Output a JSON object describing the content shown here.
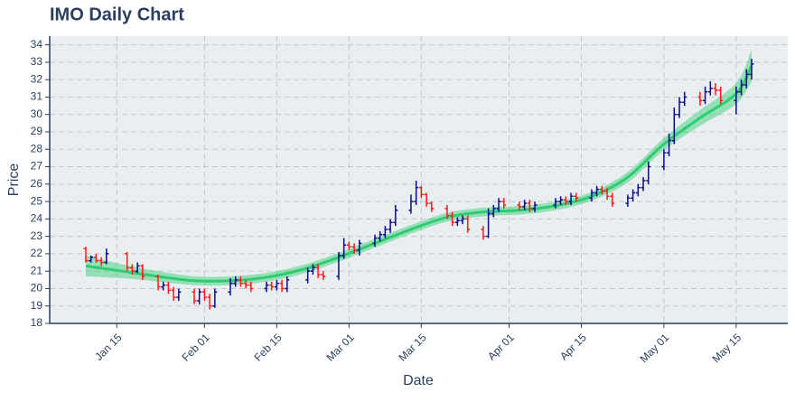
{
  "chart_data": {
    "type": "ohlc",
    "title": "IMO Daily Chart",
    "x_label": "Date",
    "y_label": "Price",
    "xlim": [
      "Jan 02",
      "May 25"
    ],
    "ylim": [
      18,
      34.5
    ],
    "xticks": [
      "Jan 15",
      "Feb 01",
      "Feb 15",
      "Mar 01",
      "Mar 15",
      "Apr 01",
      "Apr 15",
      "May 01",
      "May 15"
    ],
    "yticks": [
      18,
      19,
      20,
      21,
      22,
      23,
      24,
      25,
      26,
      27,
      28,
      29,
      30,
      31,
      32,
      33,
      34
    ],
    "grid": true,
    "series": [
      {
        "increasing_color": "#0a0a8a",
        "decreasing_color": "#ff1a1a",
        "x": [
          "Jan 09",
          "Jan 10",
          "Jan 11",
          "Jan 12",
          "Jan 13",
          "Jan 17",
          "Jan 18",
          "Jan 19",
          "Jan 20",
          "Jan 23",
          "Jan 24",
          "Jan 25",
          "Jan 26",
          "Jan 27",
          "Jan 30",
          "Jan 31",
          "Feb 01",
          "Feb 02",
          "Feb 03",
          "Feb 06",
          "Feb 07",
          "Feb 08",
          "Feb 09",
          "Feb 10",
          "Feb 13",
          "Feb 14",
          "Feb 15",
          "Feb 16",
          "Feb 17",
          "Feb 21",
          "Feb 22",
          "Feb 23",
          "Feb 24",
          "Feb 27",
          "Feb 28",
          "Mar 01",
          "Mar 02",
          "Mar 03",
          "Mar 06",
          "Mar 07",
          "Mar 08",
          "Mar 09",
          "Mar 10",
          "Mar 13",
          "Mar 14",
          "Mar 15",
          "Mar 16",
          "Mar 17",
          "Mar 20",
          "Mar 21",
          "Mar 22",
          "Mar 23",
          "Mar 24",
          "Mar 27",
          "Mar 28",
          "Mar 29",
          "Mar 30",
          "Mar 31",
          "Apr 03",
          "Apr 04",
          "Apr 05",
          "Apr 06",
          "Apr 10",
          "Apr 11",
          "Apr 12",
          "Apr 13",
          "Apr 14",
          "Apr 17",
          "Apr 18",
          "Apr 19",
          "Apr 20",
          "Apr 21",
          "Apr 24",
          "Apr 25",
          "Apr 26",
          "Apr 27",
          "Apr 28",
          "May 01",
          "May 02",
          "May 03",
          "May 04",
          "May 05",
          "May 08",
          "May 09",
          "May 10",
          "May 11",
          "May 12",
          "May 15",
          "May 16",
          "May 17",
          "May 18"
        ],
        "open": [
          22.3,
          21.6,
          21.8,
          21.6,
          21.5,
          22.0,
          21.2,
          21.0,
          21.3,
          20.7,
          20.1,
          20.2,
          19.9,
          19.5,
          19.8,
          19.3,
          19.8,
          19.5,
          19.0,
          19.8,
          20.3,
          20.5,
          20.3,
          20.2,
          20.0,
          20.2,
          20.1,
          20.3,
          20.0,
          20.5,
          21.0,
          21.2,
          20.8,
          20.7,
          21.9,
          22.5,
          22.4,
          22.2,
          22.6,
          22.9,
          23.1,
          23.4,
          23.8,
          24.5,
          25.0,
          25.8,
          25.4,
          24.9,
          24.6,
          24.2,
          23.8,
          23.9,
          24.0,
          23.4,
          23.0,
          24.3,
          24.6,
          25.0,
          24.8,
          24.7,
          24.9,
          24.6,
          24.8,
          25.0,
          25.1,
          25.0,
          25.3,
          25.2,
          25.5,
          25.7,
          25.6,
          25.3,
          24.9,
          25.2,
          25.5,
          25.8,
          26.2,
          27.0,
          27.8,
          28.5,
          30.0,
          30.7,
          31.0,
          30.8,
          31.3,
          31.5,
          31.4,
          30.8,
          31.3,
          31.7,
          32.3
        ],
        "high": [
          22.4,
          21.9,
          22.0,
          21.8,
          22.3,
          22.1,
          21.4,
          21.5,
          21.4,
          20.8,
          20.4,
          20.4,
          20.1,
          20.0,
          20.0,
          20.0,
          20.0,
          19.7,
          20.0,
          20.6,
          20.7,
          20.7,
          20.5,
          20.4,
          20.4,
          20.4,
          20.5,
          20.5,
          20.7,
          21.2,
          21.4,
          21.4,
          21.0,
          22.1,
          22.9,
          22.7,
          22.6,
          22.8,
          23.1,
          23.3,
          23.6,
          24.0,
          24.8,
          25.4,
          26.2,
          25.9,
          25.5,
          25.0,
          24.8,
          24.4,
          24.1,
          24.2,
          24.2,
          23.6,
          24.6,
          24.8,
          25.2,
          25.2,
          25.0,
          25.1,
          25.1,
          25.0,
          25.2,
          25.3,
          25.3,
          25.5,
          25.5,
          25.7,
          25.9,
          25.9,
          25.8,
          25.5,
          25.4,
          25.7,
          26.0,
          26.4,
          27.3,
          28.0,
          28.9,
          30.4,
          31.0,
          31.3,
          31.3,
          31.6,
          31.9,
          31.8,
          31.6,
          31.6,
          32.0,
          32.6,
          33.2
        ],
        "low": [
          21.5,
          21.5,
          21.5,
          21.3,
          21.4,
          21.0,
          20.8,
          20.9,
          20.5,
          19.9,
          19.9,
          19.7,
          19.3,
          19.3,
          19.1,
          19.1,
          19.3,
          18.8,
          18.9,
          19.6,
          20.1,
          20.1,
          20.0,
          19.8,
          19.8,
          19.9,
          19.9,
          19.8,
          19.8,
          20.3,
          20.8,
          20.6,
          20.5,
          20.5,
          21.7,
          22.2,
          22.0,
          21.9,
          22.4,
          22.7,
          22.9,
          23.2,
          23.6,
          24.3,
          24.8,
          25.2,
          24.7,
          24.4,
          24.0,
          23.6,
          23.6,
          23.7,
          23.2,
          22.8,
          22.9,
          24.1,
          24.4,
          24.6,
          24.5,
          24.5,
          24.4,
          24.4,
          24.6,
          24.8,
          24.8,
          24.8,
          25.0,
          25.0,
          25.3,
          25.4,
          25.1,
          24.7,
          24.7,
          25.0,
          25.3,
          25.6,
          26.0,
          26.8,
          27.6,
          28.3,
          29.8,
          30.5,
          30.5,
          30.6,
          31.1,
          31.1,
          30.6,
          30.0,
          31.1,
          31.5,
          32.0
        ],
        "close": [
          21.6,
          21.8,
          21.6,
          21.5,
          22.0,
          21.2,
          21.0,
          21.3,
          20.7,
          20.1,
          20.2,
          19.9,
          19.5,
          19.8,
          19.3,
          19.8,
          19.5,
          19.0,
          19.8,
          20.3,
          20.5,
          20.3,
          20.2,
          20.0,
          20.2,
          20.1,
          20.3,
          20.0,
          20.5,
          21.0,
          21.2,
          20.8,
          20.7,
          21.9,
          22.5,
          22.4,
          22.2,
          22.6,
          22.9,
          23.1,
          23.4,
          23.8,
          24.5,
          25.0,
          25.8,
          25.4,
          24.9,
          24.6,
          24.2,
          23.8,
          23.9,
          24.0,
          23.4,
          23.0,
          24.3,
          24.6,
          25.0,
          24.8,
          24.7,
          24.9,
          24.6,
          24.8,
          25.0,
          25.1,
          25.0,
          25.3,
          25.2,
          25.5,
          25.7,
          25.6,
          25.3,
          24.9,
          25.2,
          25.5,
          25.8,
          26.2,
          27.0,
          27.8,
          28.5,
          30.0,
          30.7,
          31.0,
          30.8,
          31.3,
          31.5,
          31.4,
          30.8,
          31.3,
          31.7,
          32.3,
          32.9
        ]
      }
    ],
    "trend": {
      "color": "#2ecc71",
      "band_color": "rgba(46,204,113,0.45)",
      "x": [
        "Jan 09",
        "Jan 16",
        "Jan 23",
        "Jan 30",
        "Feb 06",
        "Feb 13",
        "Feb 20",
        "Feb 27",
        "Mar 06",
        "Mar 13",
        "Mar 20",
        "Mar 27",
        "Apr 03",
        "Apr 10",
        "Apr 17",
        "Apr 24",
        "May 01",
        "May 08",
        "May 15",
        "May 18"
      ],
      "values": [
        21.3,
        21.0,
        20.7,
        20.45,
        20.45,
        20.65,
        21.1,
        21.8,
        22.6,
        23.4,
        24.1,
        24.4,
        24.5,
        24.75,
        25.3,
        26.4,
        28.3,
        29.8,
        31.2,
        32.8
      ],
      "lower": [
        20.7,
        20.6,
        20.4,
        20.2,
        20.2,
        20.4,
        20.85,
        21.55,
        22.35,
        23.15,
        23.85,
        24.15,
        24.25,
        24.5,
        25.05,
        26.1,
        27.95,
        29.35,
        30.6,
        31.9
      ],
      "upper": [
        21.9,
        21.4,
        21.0,
        20.7,
        20.7,
        20.9,
        21.35,
        22.05,
        22.85,
        23.65,
        24.35,
        24.65,
        24.75,
        25.0,
        25.55,
        26.7,
        28.65,
        30.25,
        31.8,
        33.7
      ]
    }
  }
}
